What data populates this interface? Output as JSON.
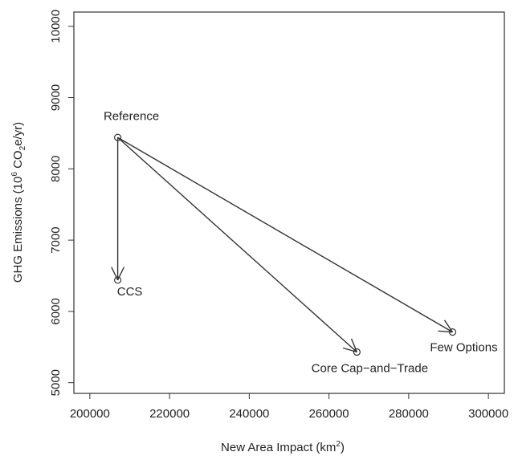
{
  "chart_data": {
    "type": "scatter",
    "xlabel": "New Area Impact (km²)",
    "xlabel_text": "New Area Impact (km",
    "xlabel_sup": "2",
    "xlabel_close": ")",
    "ylabel": "GHG Emissions (10⁶ CO₂e/yr)",
    "ylabel_parts": {
      "a": "GHG Emissions (10",
      "sup": "6",
      "b": " CO",
      "sub": "2",
      "c": "e/yr)"
    },
    "xlim": [
      196000,
      304000
    ],
    "ylim": [
      4850,
      10200
    ],
    "xticks": [
      200000,
      220000,
      240000,
      260000,
      280000,
      300000
    ],
    "yticks": [
      5000,
      6000,
      7000,
      8000,
      9000,
      10000
    ],
    "points": [
      {
        "label": "Reference",
        "x": 207000,
        "y": 8440
      },
      {
        "label": "CCS",
        "x": 207000,
        "y": 6440
      },
      {
        "label": "Core Cap−and−Trade",
        "x": 267000,
        "y": 5430
      },
      {
        "label": "Few Options",
        "x": 291000,
        "y": 5710
      }
    ],
    "arrows": [
      {
        "from": "Reference",
        "to": "CCS"
      },
      {
        "from": "Reference",
        "to": "Core Cap−and−Trade"
      },
      {
        "from": "Reference",
        "to": "Few Options"
      }
    ],
    "grid": false,
    "legend": "none"
  }
}
